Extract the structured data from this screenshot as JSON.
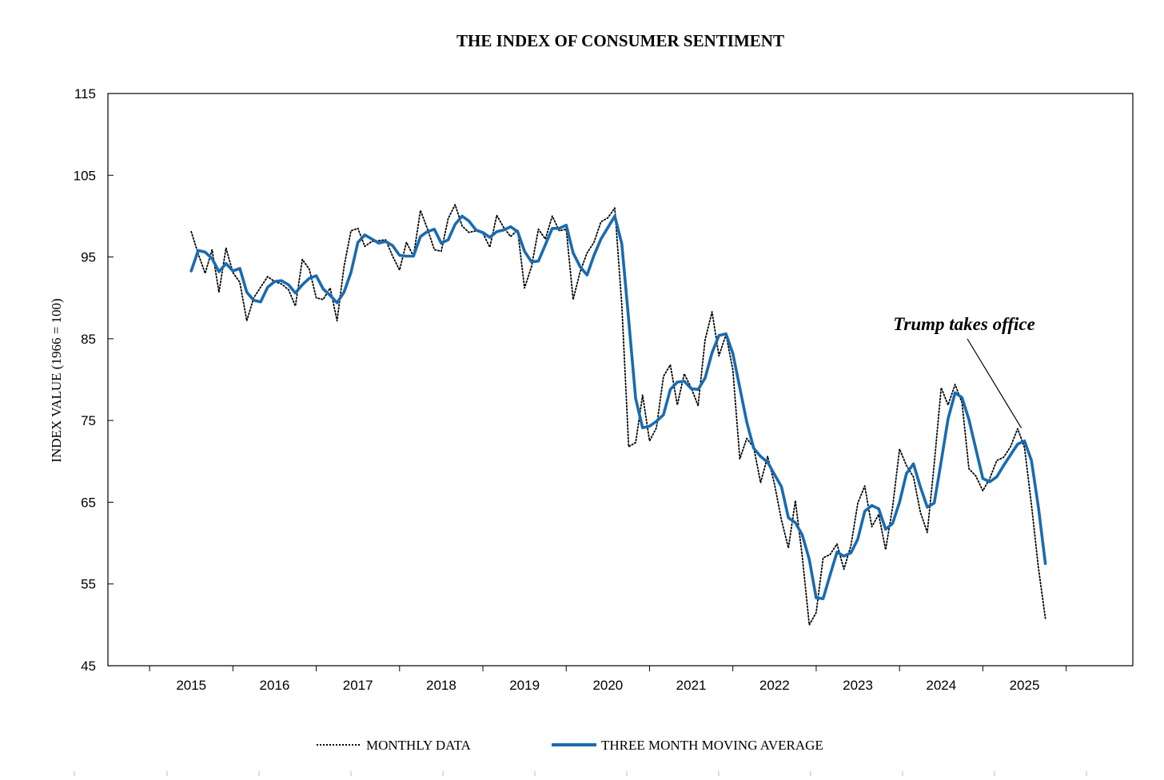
{
  "chart_data": {
    "type": "line",
    "title": "THE INDEX OF CONSUMER SENTIMENT",
    "xlabel": "",
    "ylabel": "INDEX VALUE (1966 = 100)",
    "xlim": [
      2014,
      2026.3
    ],
    "ylim": [
      45,
      115
    ],
    "yticks": [
      45,
      55,
      65,
      75,
      85,
      95,
      105,
      115
    ],
    "xticks": [
      2015,
      2016,
      2017,
      2018,
      2019,
      2020,
      2021,
      2022,
      2023,
      2024,
      2025
    ],
    "grid": false,
    "legend_position": "bottom",
    "annotation": {
      "text": "Trump takes office",
      "target": {
        "x": 2025.0,
        "y": 73.5
      }
    },
    "series": [
      {
        "name": "MONTHLY DATA",
        "color": "#000000",
        "style": "dotted",
        "x": [
          2015.0,
          2015.083,
          2015.167,
          2015.25,
          2015.333,
          2015.417,
          2015.5,
          2015.583,
          2015.667,
          2015.75,
          2015.833,
          2015.917,
          2016.0,
          2016.083,
          2016.167,
          2016.25,
          2016.333,
          2016.417,
          2016.5,
          2016.583,
          2016.667,
          2016.75,
          2016.833,
          2016.917,
          2017.0,
          2017.083,
          2017.167,
          2017.25,
          2017.333,
          2017.417,
          2017.5,
          2017.583,
          2017.667,
          2017.75,
          2017.833,
          2017.917,
          2018.0,
          2018.083,
          2018.167,
          2018.25,
          2018.333,
          2018.417,
          2018.5,
          2018.583,
          2018.667,
          2018.75,
          2018.833,
          2018.917,
          2019.0,
          2019.083,
          2019.167,
          2019.25,
          2019.333,
          2019.417,
          2019.5,
          2019.583,
          2019.667,
          2019.75,
          2019.833,
          2019.917,
          2020.0,
          2020.083,
          2020.167,
          2020.25,
          2020.333,
          2020.417,
          2020.5,
          2020.583,
          2020.667,
          2020.75,
          2020.833,
          2020.917,
          2021.0,
          2021.083,
          2021.167,
          2021.25,
          2021.333,
          2021.417,
          2021.5,
          2021.583,
          2021.667,
          2021.75,
          2021.833,
          2021.917,
          2022.0,
          2022.083,
          2022.167,
          2022.25,
          2022.333,
          2022.417,
          2022.5,
          2022.583,
          2022.667,
          2022.75,
          2022.833,
          2022.917,
          2023.0,
          2023.083,
          2023.167,
          2023.25,
          2023.333,
          2023.417,
          2023.5,
          2023.583,
          2023.667,
          2023.75,
          2023.833,
          2023.917,
          2024.0,
          2024.083,
          2024.167,
          2024.25,
          2024.333,
          2024.417,
          2024.5,
          2024.583,
          2024.667,
          2024.75,
          2024.833,
          2024.917,
          2025.0,
          2025.083,
          2025.167,
          2025.25
        ],
        "values": [
          98.1,
          95.4,
          93.0,
          95.9,
          90.7,
          96.1,
          93.1,
          91.9,
          87.2,
          90.0,
          91.3,
          92.6,
          92.0,
          91.7,
          91.0,
          89.0,
          94.7,
          93.5,
          90.0,
          89.8,
          91.2,
          87.2,
          93.8,
          98.2,
          98.5,
          96.3,
          96.9,
          97.0,
          97.1,
          95.1,
          93.4,
          96.8,
          95.1,
          100.7,
          98.5,
          95.9,
          95.7,
          99.7,
          101.4,
          98.8,
          98.0,
          98.2,
          97.9,
          96.2,
          100.1,
          98.6,
          97.5,
          98.3,
          91.2,
          93.8,
          98.4,
          97.2,
          100.0,
          98.2,
          98.4,
          89.8,
          93.2,
          95.5,
          96.8,
          99.3,
          99.8,
          101.0,
          89.1,
          71.8,
          72.3,
          78.1,
          72.5,
          74.1,
          80.4,
          81.8,
          76.9,
          80.7,
          79.0,
          76.8,
          84.9,
          88.3,
          82.9,
          85.5,
          81.2,
          70.3,
          72.8,
          71.7,
          67.4,
          70.6,
          67.2,
          62.8,
          59.4,
          65.2,
          58.4,
          50.0,
          51.5,
          58.2,
          58.6,
          59.9,
          56.8,
          59.7,
          64.9,
          67.0,
          62.0,
          63.5,
          59.2,
          64.4,
          71.5,
          69.5,
          68.1,
          63.8,
          61.3,
          69.7,
          79.0,
          76.9,
          79.4,
          77.2,
          69.1,
          68.2,
          66.4,
          67.9,
          70.1,
          70.5,
          71.8,
          74.0,
          71.7,
          64.7,
          57.0,
          50.8
        ]
      },
      {
        "name": "THREE MONTH MOVING AVERAGE",
        "color": "#1a6bb0",
        "style": "solid",
        "x": [
          2015.0,
          2015.083,
          2015.167,
          2015.25,
          2015.333,
          2015.417,
          2015.5,
          2015.583,
          2015.667,
          2015.75,
          2015.833,
          2015.917,
          2016.0,
          2016.083,
          2016.167,
          2016.25,
          2016.333,
          2016.417,
          2016.5,
          2016.583,
          2016.667,
          2016.75,
          2016.833,
          2016.917,
          2017.0,
          2017.083,
          2017.167,
          2017.25,
          2017.333,
          2017.417,
          2017.5,
          2017.583,
          2017.667,
          2017.75,
          2017.833,
          2017.917,
          2018.0,
          2018.083,
          2018.167,
          2018.25,
          2018.333,
          2018.417,
          2018.5,
          2018.583,
          2018.667,
          2018.75,
          2018.833,
          2018.917,
          2019.0,
          2019.083,
          2019.167,
          2019.25,
          2019.333,
          2019.417,
          2019.5,
          2019.583,
          2019.667,
          2019.75,
          2019.833,
          2019.917,
          2020.0,
          2020.083,
          2020.167,
          2020.25,
          2020.333,
          2020.417,
          2020.5,
          2020.583,
          2020.667,
          2020.75,
          2020.833,
          2020.917,
          2021.0,
          2021.083,
          2021.167,
          2021.25,
          2021.333,
          2021.417,
          2021.5,
          2021.583,
          2021.667,
          2021.75,
          2021.833,
          2021.917,
          2022.0,
          2022.083,
          2022.167,
          2022.25,
          2022.333,
          2022.417,
          2022.5,
          2022.583,
          2022.667,
          2022.75,
          2022.833,
          2022.917,
          2023.0,
          2023.083,
          2023.167,
          2023.25,
          2023.333,
          2023.417,
          2023.5,
          2023.583,
          2023.667,
          2023.75,
          2023.833,
          2023.917,
          2024.0,
          2024.083,
          2024.167,
          2024.25,
          2024.333,
          2024.417,
          2024.5,
          2024.583,
          2024.667,
          2024.75,
          2024.833,
          2024.917,
          2025.0,
          2025.083,
          2025.167,
          2025.25
        ],
        "values": [
          93.3,
          95.8,
          95.6,
          94.8,
          93.2,
          94.2,
          93.3,
          93.6,
          90.7,
          89.7,
          89.5,
          91.3,
          92.0,
          92.1,
          91.6,
          90.6,
          91.6,
          92.4,
          92.7,
          91.1,
          90.3,
          89.4,
          90.7,
          93.1,
          96.8,
          97.7,
          97.2,
          96.7,
          96.9,
          96.4,
          95.2,
          95.1,
          95.1,
          97.5,
          98.1,
          98.4,
          96.7,
          97.1,
          99.0,
          100.0,
          99.4,
          98.3,
          98.0,
          97.4,
          98.1,
          98.3,
          98.7,
          98.1,
          95.7,
          94.4,
          94.5,
          96.5,
          98.5,
          98.5,
          98.9,
          95.5,
          93.8,
          92.8,
          95.2,
          97.2,
          98.6,
          100.0,
          96.6,
          87.3,
          77.7,
          74.1,
          74.3,
          74.9,
          75.7,
          78.8,
          79.7,
          79.8,
          78.9,
          78.8,
          80.2,
          83.3,
          85.4,
          85.6,
          83.2,
          79.0,
          74.8,
          71.6,
          70.6,
          69.9,
          68.4,
          66.9,
          63.1,
          62.5,
          61.0,
          58.0,
          53.3,
          53.2,
          56.1,
          58.9,
          58.4,
          58.8,
          60.5,
          63.9,
          64.6,
          64.2,
          61.7,
          62.4,
          65.0,
          68.5,
          69.7,
          66.9,
          64.4,
          64.9,
          70.0,
          75.2,
          78.4,
          77.8,
          75.1,
          71.5,
          67.9,
          67.5,
          68.1,
          69.5,
          70.8,
          72.1,
          72.5,
          70.1,
          64.4,
          57.5
        ]
      }
    ]
  }
}
